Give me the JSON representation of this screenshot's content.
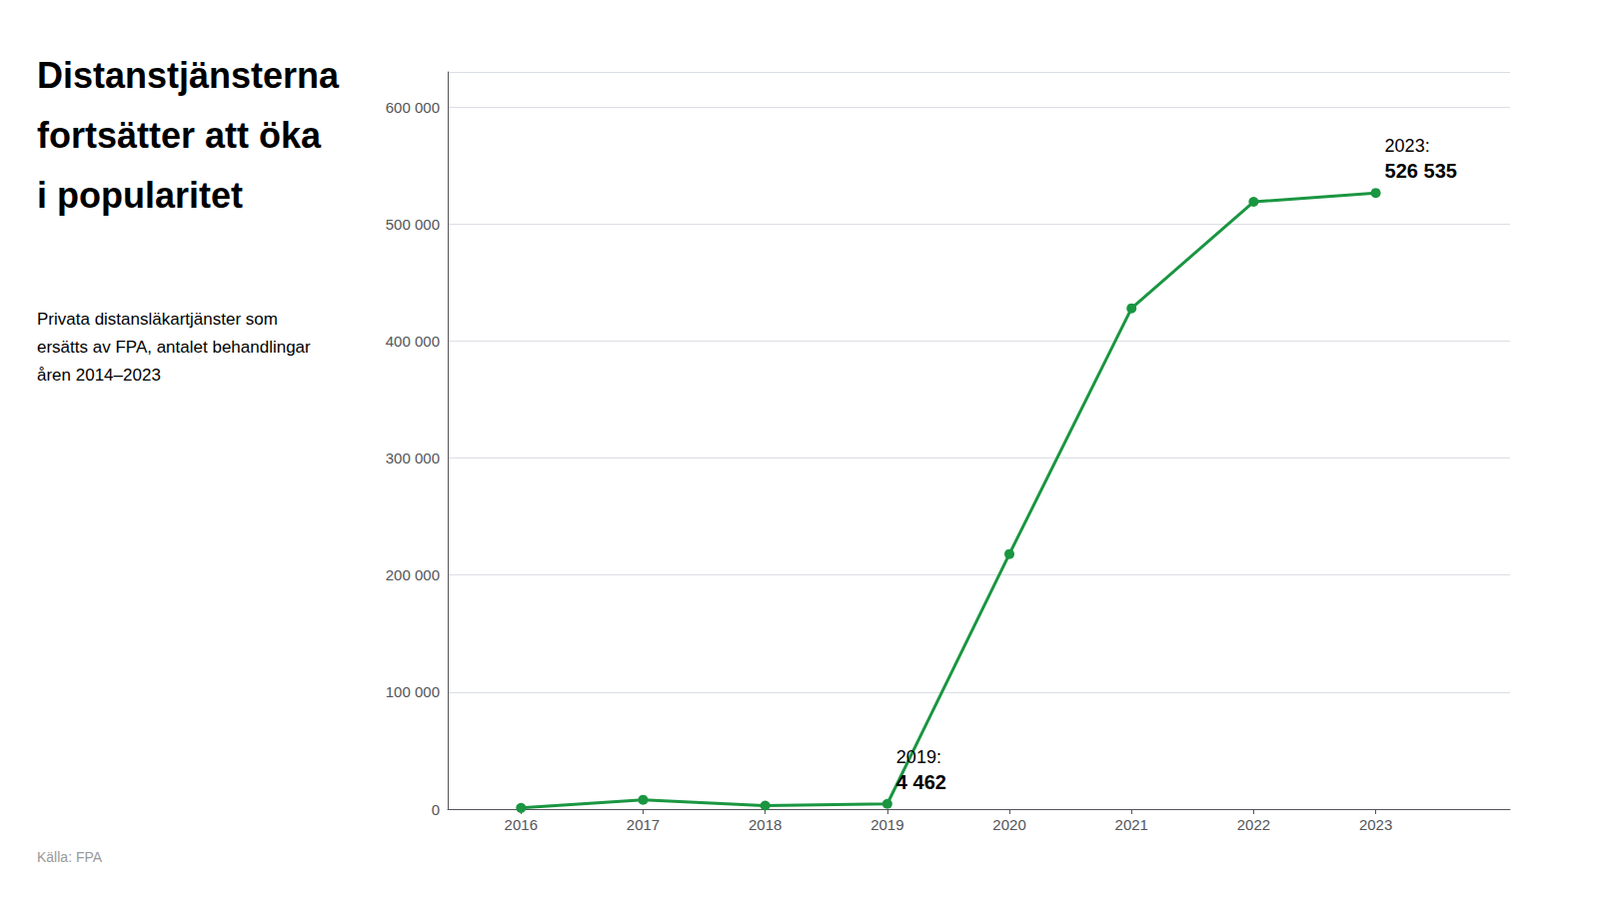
{
  "chart_data": {
    "type": "line",
    "title": [
      "Distanstjänsterna",
      "fortsätter att öka",
      "i popularitet"
    ],
    "subtitle": [
      "Privata distansläkartjänster som",
      "ersätts av FPA, antalet behandlingar",
      "åren 2014–2023"
    ],
    "source": "Källa: FPA",
    "x": [
      2016,
      2017,
      2018,
      2019,
      2020,
      2021,
      2022,
      2023
    ],
    "values": [
      1000,
      8000,
      3000,
      4462,
      218000,
      428000,
      519000,
      526535
    ],
    "color": "#1a9641",
    "marker": "circle",
    "xlim": [
      2015.4,
      2024.1
    ],
    "xticks": [
      2016,
      2017,
      2018,
      2019,
      2020,
      2021,
      2022,
      2023
    ],
    "ylim": [
      0,
      630000
    ],
    "yticks": [
      0,
      {
        "value": 100000,
        "label": "100 000"
      },
      {
        "value": 200000,
        "label": "200 000"
      },
      {
        "value": 300000,
        "label": "300 000"
      },
      {
        "value": 400000,
        "label": "400 000"
      },
      {
        "value": 500000,
        "label": "500 000"
      },
      {
        "value": 600000,
        "label": "600 000"
      }
    ],
    "grid": true,
    "annotations": [
      {
        "x": 2019,
        "label": "2019:",
        "value_label": "4 462"
      },
      {
        "x": 2023,
        "label": "2023:",
        "value_label": "526 535"
      }
    ]
  }
}
